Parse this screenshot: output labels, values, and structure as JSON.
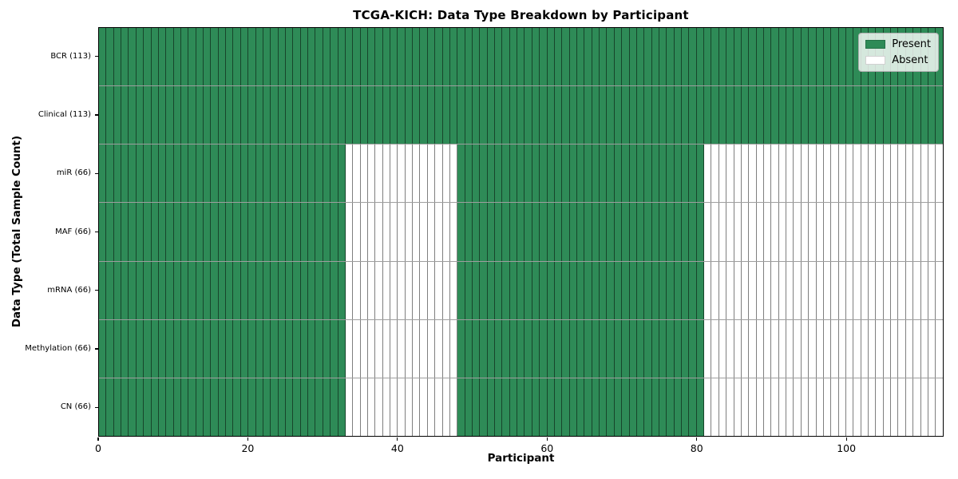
{
  "chart_data": {
    "type": "heatmap",
    "title": "TCGA-KICH: Data Type Breakdown by Participant",
    "xlabel": "Participant",
    "ylabel": "Data Type (Total Sample Count)",
    "x_ticks": [
      0,
      20,
      40,
      60,
      80,
      100
    ],
    "x_range": [
      0,
      113
    ],
    "n_participants": 113,
    "grid": "cell-borders",
    "legend_position": "upper right",
    "colors": {
      "present": "#2e8b57",
      "absent": "#ffffff",
      "cell_edge": "rgba(0,0,0,0.5)",
      "spine": "#000000"
    },
    "legend": [
      {
        "label": "Present",
        "color": "#2e8b57"
      },
      {
        "label": "Absent",
        "color": "#ffffff"
      }
    ],
    "rows": [
      {
        "label": "BCR (113)",
        "total_samples": 113,
        "present_runs": [
          [
            0,
            113
          ]
        ]
      },
      {
        "label": "Clinical (113)",
        "total_samples": 113,
        "present_runs": [
          [
            0,
            113
          ]
        ]
      },
      {
        "label": "miR (66)",
        "total_samples": 66,
        "present_runs": [
          [
            0,
            33
          ],
          [
            48,
            81
          ]
        ]
      },
      {
        "label": "MAF (66)",
        "total_samples": 66,
        "present_runs": [
          [
            0,
            33
          ],
          [
            48,
            81
          ]
        ]
      },
      {
        "label": "mRNA (66)",
        "total_samples": 66,
        "present_runs": [
          [
            0,
            33
          ],
          [
            48,
            81
          ]
        ]
      },
      {
        "label": "Methylation (66)",
        "total_samples": 66,
        "present_runs": [
          [
            0,
            33
          ],
          [
            48,
            81
          ]
        ]
      },
      {
        "label": "CN (66)",
        "total_samples": 66,
        "present_runs": [
          [
            0,
            33
          ],
          [
            48,
            81
          ]
        ]
      }
    ]
  }
}
